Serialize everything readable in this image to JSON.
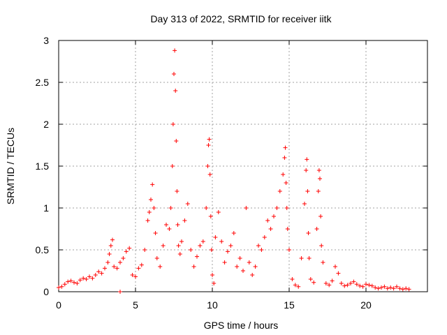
{
  "chart_data": {
    "type": "scatter",
    "title": "Day 313 of 2022, SRMTID for receiver iitk",
    "xlabel": "GPS time / hours",
    "ylabel": "SRMTID / TECUs",
    "xlim": [
      0,
      24
    ],
    "ylim": [
      0,
      3
    ],
    "x_ticks": [
      0,
      5,
      10,
      15,
      20
    ],
    "x_tick_labels": [
      "0",
      "5",
      "10",
      "15",
      "20"
    ],
    "y_ticks": [
      0,
      0.5,
      1,
      1.5,
      2,
      2.5,
      3
    ],
    "y_tick_labels": [
      "0",
      "0.5",
      "1",
      "1.5",
      "2",
      "2.5",
      "3"
    ],
    "grid": true,
    "marker": "+",
    "series": [
      {
        "name": "SRMTID",
        "color": "#ff0000",
        "x": [
          0.0,
          0.2,
          0.4,
          0.6,
          0.8,
          1.0,
          1.2,
          1.4,
          1.6,
          1.8,
          2.0,
          2.2,
          2.4,
          2.6,
          2.8,
          3.0,
          3.2,
          3.3,
          3.4,
          3.5,
          3.6,
          3.8,
          4.0,
          4.0,
          4.2,
          4.4,
          4.6,
          4.8,
          5.0,
          5.2,
          5.4,
          5.6,
          5.8,
          5.9,
          6.0,
          6.1,
          6.2,
          6.3,
          6.4,
          6.6,
          6.8,
          7.0,
          7.2,
          7.3,
          7.4,
          7.45,
          7.5,
          7.55,
          7.6,
          7.65,
          7.7,
          7.75,
          7.8,
          7.9,
          8.0,
          8.2,
          8.4,
          8.6,
          8.8,
          9.0,
          9.2,
          9.4,
          9.6,
          9.7,
          9.75,
          9.8,
          9.85,
          9.9,
          9.95,
          10.0,
          10.1,
          10.2,
          10.4,
          10.6,
          10.8,
          11.0,
          11.2,
          11.4,
          11.6,
          11.8,
          12.0,
          12.2,
          12.4,
          12.6,
          12.8,
          13.0,
          13.2,
          13.4,
          13.6,
          13.8,
          14.0,
          14.2,
          14.4,
          14.6,
          14.7,
          14.75,
          14.8,
          14.85,
          14.9,
          15.0,
          15.2,
          15.4,
          15.6,
          15.8,
          16.0,
          16.1,
          16.15,
          16.2,
          16.25,
          16.3,
          16.4,
          16.6,
          16.8,
          16.9,
          16.95,
          17.0,
          17.05,
          17.1,
          17.2,
          17.4,
          17.6,
          17.8,
          18.0,
          18.2,
          18.4,
          18.6,
          18.8,
          19.0,
          19.2,
          19.4,
          19.6,
          19.8,
          20.0,
          20.2,
          20.4,
          20.6,
          20.8,
          21.0,
          21.2,
          21.4,
          21.6,
          21.8,
          22.0,
          22.2,
          22.4,
          22.6,
          22.8
        ],
        "y": [
          0.05,
          0.06,
          0.09,
          0.12,
          0.13,
          0.11,
          0.1,
          0.14,
          0.16,
          0.15,
          0.18,
          0.16,
          0.2,
          0.24,
          0.22,
          0.28,
          0.35,
          0.45,
          0.55,
          0.62,
          0.3,
          0.28,
          0.35,
          0.0,
          0.4,
          0.48,
          0.52,
          0.2,
          0.18,
          0.28,
          0.32,
          0.5,
          0.85,
          0.95,
          1.1,
          1.28,
          1.0,
          0.7,
          0.4,
          0.3,
          0.55,
          0.8,
          0.75,
          1.0,
          1.5,
          2.0,
          2.6,
          2.88,
          2.4,
          1.8,
          1.2,
          0.8,
          0.55,
          0.45,
          0.6,
          0.85,
          1.05,
          0.5,
          0.3,
          0.42,
          0.55,
          0.6,
          1.0,
          1.5,
          1.75,
          1.82,
          1.4,
          0.9,
          0.5,
          0.2,
          0.1,
          0.65,
          0.95,
          0.6,
          0.35,
          0.48,
          0.55,
          0.7,
          0.3,
          0.4,
          0.25,
          1.0,
          0.35,
          0.2,
          0.3,
          0.55,
          0.5,
          0.65,
          0.85,
          0.75,
          0.9,
          1.0,
          1.2,
          1.4,
          1.6,
          1.72,
          1.3,
          1.0,
          0.75,
          0.5,
          0.15,
          0.08,
          0.06,
          0.4,
          1.05,
          1.45,
          1.58,
          1.2,
          0.7,
          0.4,
          0.15,
          0.11,
          0.75,
          1.2,
          1.45,
          1.35,
          0.9,
          0.55,
          0.35,
          0.1,
          0.08,
          0.13,
          0.3,
          0.22,
          0.1,
          0.07,
          0.08,
          0.1,
          0.12,
          0.09,
          0.07,
          0.06,
          0.09,
          0.08,
          0.07,
          0.05,
          0.04,
          0.05,
          0.06,
          0.04,
          0.05,
          0.04,
          0.06,
          0.04,
          0.03,
          0.04,
          0.03
        ]
      }
    ]
  }
}
